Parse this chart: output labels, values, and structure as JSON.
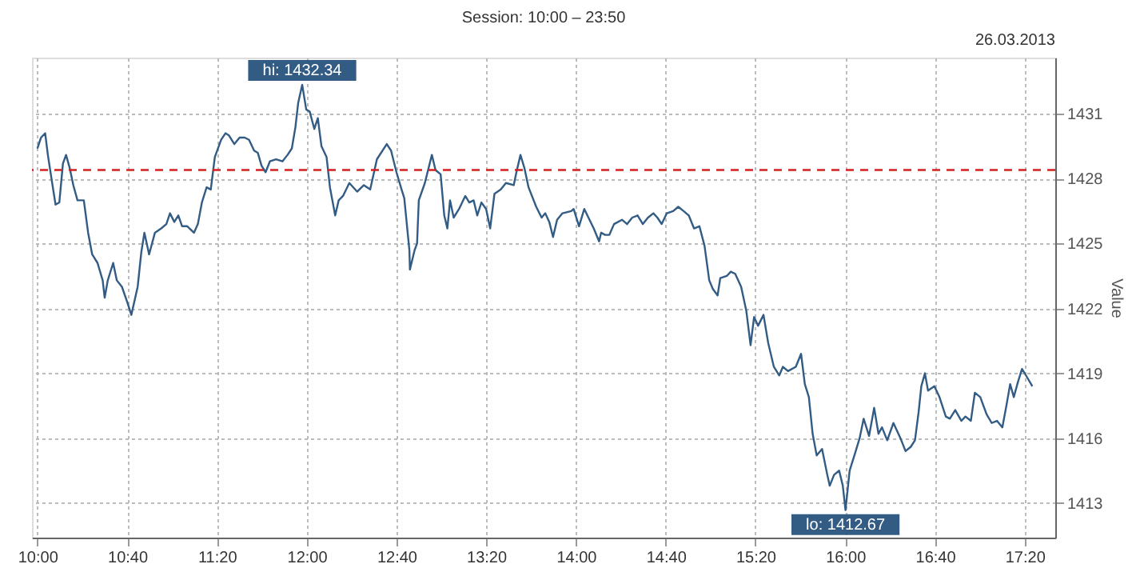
{
  "chart_data": {
    "type": "line",
    "title": "Session: 10:00 – 23:50",
    "ylabel": "Value",
    "x": [
      10.0,
      10.027,
      10.058,
      10.078,
      10.105,
      10.135,
      10.163,
      10.19,
      10.213,
      10.24,
      10.267,
      10.298,
      10.345,
      10.377,
      10.407,
      10.447,
      10.485,
      10.5,
      10.523,
      10.563,
      10.59,
      10.628,
      10.667,
      10.698,
      10.745,
      10.772,
      10.795,
      10.83,
      10.873,
      10.92,
      10.958,
      10.985,
      11.017,
      11.047,
      11.075,
      11.113,
      11.163,
      11.192,
      11.222,
      11.257,
      11.288,
      11.318,
      11.365,
      11.397,
      11.423,
      11.463,
      11.502,
      11.54,
      11.572,
      11.61,
      11.637,
      11.665,
      11.695,
      11.727,
      11.773,
      11.82,
      11.858,
      11.89,
      11.917,
      11.937,
      11.967,
      11.997,
      12.023,
      12.057,
      12.083,
      12.11,
      12.148,
      12.173,
      12.212,
      12.238,
      12.27,
      12.317,
      12.375,
      12.425,
      12.472,
      12.522,
      12.595,
      12.627,
      12.667,
      12.705,
      12.725,
      12.763,
      12.767,
      12.802,
      12.82,
      12.833,
      12.878,
      12.93,
      12.957,
      12.995,
      13.022,
      13.045,
      13.065,
      13.092,
      13.132,
      13.178,
      13.208,
      13.24,
      13.267,
      13.298,
      13.333,
      13.363,
      13.395,
      13.442,
      13.48,
      13.538,
      13.558,
      13.588,
      13.617,
      13.648,
      13.705,
      13.745,
      13.772,
      13.802,
      13.83,
      13.86,
      13.9,
      13.965,
      13.983,
      14.023,
      14.062,
      14.093,
      14.132,
      14.172,
      14.187,
      14.217,
      14.248,
      14.283,
      14.313,
      14.342,
      14.38,
      14.418,
      14.458,
      14.497,
      14.535,
      14.575,
      14.605,
      14.637,
      14.675,
      14.722,
      14.76,
      14.8,
      14.838,
      14.877,
      14.917,
      14.955,
      14.99,
      15.017,
      15.052,
      15.072,
      15.12,
      15.15,
      15.183,
      15.227,
      15.265,
      15.297,
      15.323,
      15.353,
      15.393,
      15.428,
      15.47,
      15.51,
      15.537,
      15.575,
      15.633,
      15.672,
      15.7,
      15.73,
      15.758,
      15.788,
      15.828,
      15.867,
      15.885,
      15.917,
      15.955,
      15.982,
      16.002,
      16.033,
      16.078,
      16.107,
      16.137,
      16.177,
      16.215,
      16.247,
      16.273,
      16.312,
      16.358,
      16.41,
      16.448,
      16.487,
      16.518,
      16.545,
      16.565,
      16.592,
      16.615,
      16.662,
      16.7,
      16.747,
      16.777,
      16.817,
      16.863,
      16.893,
      16.933,
      16.963,
      17.003,
      17.05,
      17.088,
      17.127,
      17.167,
      17.197,
      17.225,
      17.252,
      17.283,
      17.313,
      17.352,
      17.39
    ],
    "series": [
      {
        "color": "#335c85",
        "values": [
          1429.4,
          1429.9,
          1430.1,
          1429.1,
          1428.0,
          1426.8,
          1426.9,
          1428.7,
          1429.1,
          1428.5,
          1427.7,
          1427.0,
          1427.0,
          1425.5,
          1424.5,
          1424.1,
          1423.3,
          1422.5,
          1423.3,
          1424.1,
          1423.3,
          1423.0,
          1422.3,
          1421.7,
          1423.0,
          1424.6,
          1425.5,
          1424.5,
          1425.5,
          1425.7,
          1425.9,
          1426.4,
          1426.0,
          1426.3,
          1425.8,
          1425.8,
          1425.5,
          1425.9,
          1426.9,
          1427.6,
          1427.5,
          1429.0,
          1429.8,
          1430.1,
          1430.0,
          1429.6,
          1429.9,
          1429.9,
          1429.8,
          1429.3,
          1429.2,
          1428.6,
          1428.3,
          1428.8,
          1428.9,
          1428.8,
          1429.1,
          1429.4,
          1430.4,
          1431.5,
          1432.34,
          1431.2,
          1431.1,
          1430.3,
          1430.8,
          1429.5,
          1429.0,
          1427.6,
          1426.3,
          1427.0,
          1427.2,
          1427.8,
          1427.4,
          1427.7,
          1427.5,
          1428.9,
          1429.6,
          1429.3,
          1428.3,
          1427.5,
          1427.1,
          1424.7,
          1423.8,
          1424.7,
          1425.0,
          1427.0,
          1427.8,
          1429.1,
          1428.4,
          1428.2,
          1426.3,
          1425.7,
          1427.0,
          1426.2,
          1426.6,
          1427.2,
          1426.9,
          1427.0,
          1426.3,
          1426.9,
          1426.6,
          1425.7,
          1427.3,
          1427.5,
          1427.8,
          1427.7,
          1428.3,
          1429.1,
          1428.5,
          1427.6,
          1426.7,
          1426.2,
          1426.4,
          1426.0,
          1425.3,
          1426.1,
          1426.4,
          1426.5,
          1426.6,
          1425.8,
          1426.6,
          1426.2,
          1425.7,
          1425.1,
          1425.5,
          1425.4,
          1425.4,
          1425.9,
          1426.0,
          1426.1,
          1425.9,
          1426.2,
          1426.3,
          1425.9,
          1426.2,
          1426.4,
          1426.2,
          1425.9,
          1426.4,
          1426.5,
          1426.7,
          1426.5,
          1426.3,
          1425.7,
          1425.8,
          1424.9,
          1423.3,
          1422.9,
          1422.6,
          1423.4,
          1423.5,
          1423.7,
          1423.6,
          1423.0,
          1421.9,
          1420.3,
          1421.6,
          1421.2,
          1421.7,
          1420.4,
          1419.3,
          1418.9,
          1419.3,
          1419.1,
          1419.3,
          1419.9,
          1418.5,
          1417.9,
          1416.2,
          1415.2,
          1415.5,
          1414.3,
          1413.8,
          1414.3,
          1414.5,
          1413.8,
          1412.67,
          1414.5,
          1415.4,
          1416.0,
          1416.9,
          1416.1,
          1417.4,
          1416.2,
          1416.5,
          1415.9,
          1416.7,
          1416.0,
          1415.4,
          1415.6,
          1415.9,
          1417.2,
          1418.4,
          1419.0,
          1418.2,
          1418.4,
          1417.9,
          1417.0,
          1416.9,
          1417.3,
          1416.8,
          1417.0,
          1416.8,
          1418.1,
          1417.9,
          1417.1,
          1416.7,
          1416.8,
          1416.5,
          1417.5,
          1418.5,
          1417.9,
          1418.6,
          1419.2,
          1418.8,
          1418.4
        ]
      }
    ],
    "xlim": [
      9.96,
      17.56
    ],
    "ylim": [
      1411.4,
      1433.6
    ],
    "xticks": [
      {
        "value": 10,
        "label": "10:00"
      },
      {
        "value": 10.667,
        "label": "10:40"
      },
      {
        "value": 11.333,
        "label": "11:20"
      },
      {
        "value": 12,
        "label": "12:00"
      },
      {
        "value": 12.667,
        "label": "12:40"
      },
      {
        "value": 13.333,
        "label": "13:20"
      },
      {
        "value": 14,
        "label": "14:00"
      },
      {
        "value": 14.667,
        "label": "14:40"
      },
      {
        "value": 15.333,
        "label": "15:20"
      },
      {
        "value": 16,
        "label": "16:00"
      },
      {
        "value": 16.667,
        "label": "16:40"
      },
      {
        "value": 17.333,
        "label": "17:20"
      }
    ],
    "yticks": [
      1413,
      1416,
      1419,
      1422,
      1425,
      1428,
      1431
    ],
    "ref_lines": [
      {
        "axis": "y",
        "value": 1428.4,
        "color": "#d42020",
        "line_style": "dashed"
      }
    ],
    "annotations": [
      "26.03.2013",
      {
        "text": "hi: 1432.34",
        "x": 11.967,
        "y": 1432.34
      },
      {
        "text": "lo: 1412.67",
        "x": 16.002,
        "y": 1412.67
      }
    ],
    "grid": true,
    "marker": "none",
    "line_style": "solid"
  }
}
